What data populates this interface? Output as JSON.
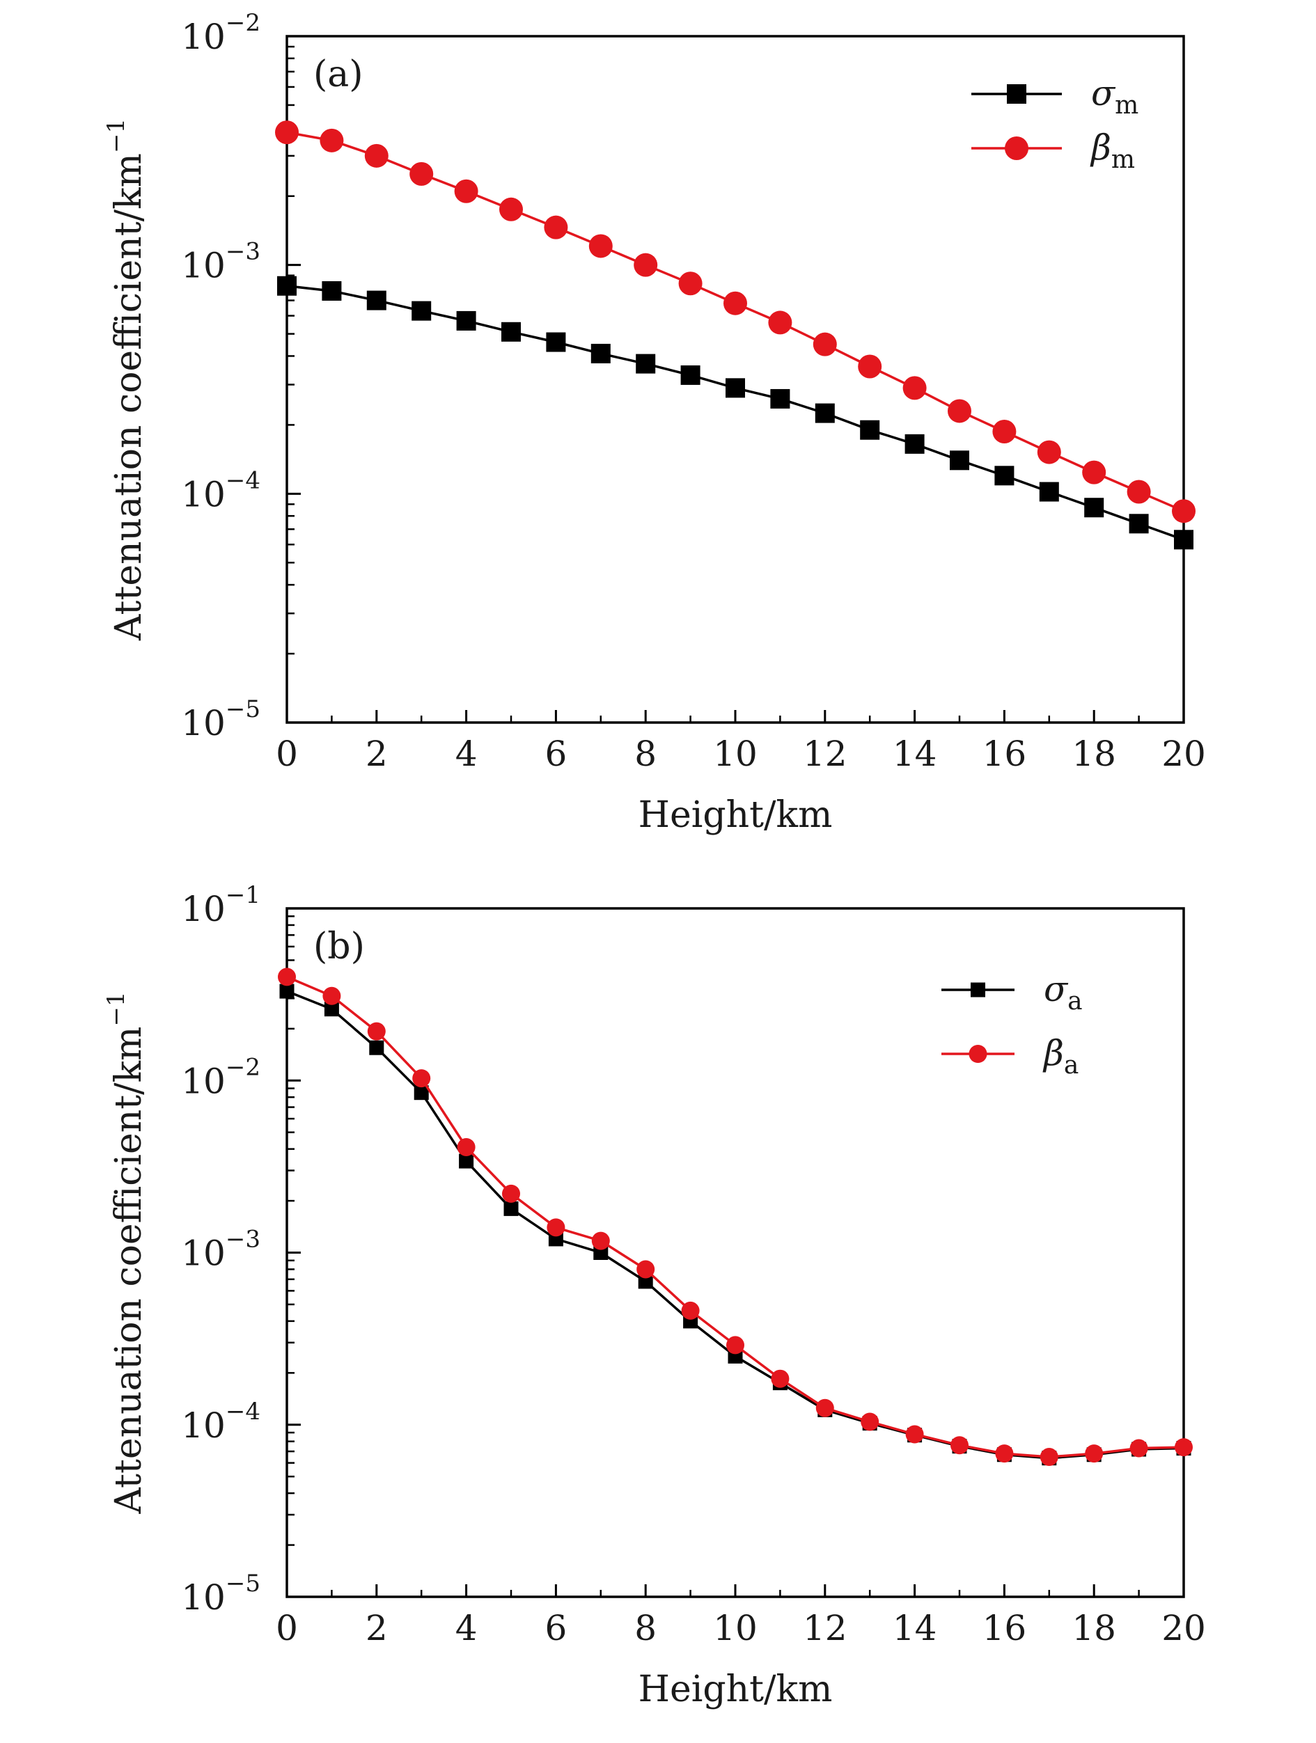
{
  "colors": {
    "black_series": "#000000",
    "red_series": "#e3171e",
    "axes": "#000000"
  },
  "chart_data": [
    {
      "type": "line",
      "panel_label": "(a)",
      "xlabel": "Height/km",
      "ylabel": "Attenuation coefficient/km",
      "ylabel_sup": "−1",
      "xscale": "linear",
      "yscale": "log",
      "xlim": [
        0,
        20
      ],
      "ylim": [
        1e-05,
        0.01
      ],
      "x_major_ticks": [
        0,
        2,
        4,
        6,
        8,
        10,
        12,
        14,
        16,
        18,
        20
      ],
      "x_minor_ticks": [
        1,
        3,
        5,
        7,
        9,
        11,
        13,
        15,
        17,
        19
      ],
      "y_ticks": [
        {
          "value": 1e-05,
          "base": "10",
          "exp": "−5"
        },
        {
          "value": 0.0001,
          "base": "10",
          "exp": "−4"
        },
        {
          "value": 0.001,
          "base": "10",
          "exp": "−3"
        },
        {
          "value": 0.01,
          "base": "10",
          "exp": "−2"
        }
      ],
      "grid": false,
      "legend_position": "top-right",
      "x": [
        0,
        1,
        2,
        3,
        4,
        5,
        6,
        7,
        8,
        9,
        10,
        11,
        12,
        13,
        14,
        15,
        16,
        17,
        18,
        19,
        20
      ],
      "series": [
        {
          "symbol": "σ",
          "subscript": "m",
          "marker": "square",
          "color": "#000000",
          "values": [
            0.00081,
            0.00077,
            0.0007,
            0.00063,
            0.00057,
            0.00051,
            0.00046,
            0.00041,
            0.00037,
            0.00033,
            0.00029,
            0.00026,
            0.000225,
            0.00019,
            0.000165,
            0.00014,
            0.00012,
            0.000102,
            8.7e-05,
            7.4e-05,
            6.3e-05
          ]
        },
        {
          "symbol": "β",
          "subscript": "m",
          "marker": "circle",
          "color": "#e3171e",
          "values": [
            0.0038,
            0.0035,
            0.003,
            0.0025,
            0.0021,
            0.00175,
            0.00146,
            0.00121,
            0.001,
            0.00083,
            0.00068,
            0.00056,
            0.00045,
            0.00036,
            0.00029,
            0.00023,
            0.000187,
            0.000152,
            0.000124,
            0.000102,
            8.4e-05
          ]
        }
      ]
    },
    {
      "type": "line",
      "panel_label": "(b)",
      "xlabel": "Height/km",
      "ylabel": "Attenuation coefficient/km",
      "ylabel_sup": "−1",
      "xscale": "linear",
      "yscale": "log",
      "xlim": [
        0,
        20
      ],
      "ylim": [
        1e-05,
        0.1
      ],
      "x_major_ticks": [
        0,
        2,
        4,
        6,
        8,
        10,
        12,
        14,
        16,
        18,
        20
      ],
      "x_minor_ticks": [
        1,
        3,
        5,
        7,
        9,
        11,
        13,
        15,
        17,
        19
      ],
      "y_ticks": [
        {
          "value": 1e-05,
          "base": "10",
          "exp": "−5"
        },
        {
          "value": 0.0001,
          "base": "10",
          "exp": "−4"
        },
        {
          "value": 0.001,
          "base": "10",
          "exp": "−3"
        },
        {
          "value": 0.01,
          "base": "10",
          "exp": "−2"
        },
        {
          "value": 0.1,
          "base": "10",
          "exp": "−1"
        }
      ],
      "grid": false,
      "legend_position": "top-right",
      "x": [
        0,
        1,
        2,
        3,
        4,
        5,
        6,
        7,
        8,
        9,
        10,
        11,
        12,
        13,
        14,
        15,
        16,
        17,
        18,
        19,
        20
      ],
      "series": [
        {
          "symbol": "σ",
          "subscript": "a",
          "marker": "square",
          "color": "#000000",
          "values": [
            0.033,
            0.026,
            0.0155,
            0.0085,
            0.0034,
            0.0018,
            0.0012,
            0.001,
            0.00068,
            0.0004,
            0.00025,
            0.000175,
            0.000122,
            0.000102,
            8.7e-05,
            7.5e-05,
            6.7e-05,
            6.4e-05,
            6.7e-05,
            7.2e-05,
            7.3e-05
          ]
        },
        {
          "symbol": "β",
          "subscript": "a",
          "marker": "circle",
          "color": "#e3171e",
          "values": [
            0.04,
            0.031,
            0.0193,
            0.0103,
            0.0041,
            0.0022,
            0.0014,
            0.00117,
            0.0008,
            0.00046,
            0.00029,
            0.000185,
            0.000125,
            0.000104,
            8.8e-05,
            7.6e-05,
            6.8e-05,
            6.5e-05,
            6.8e-05,
            7.3e-05,
            7.4e-05
          ]
        }
      ]
    }
  ]
}
